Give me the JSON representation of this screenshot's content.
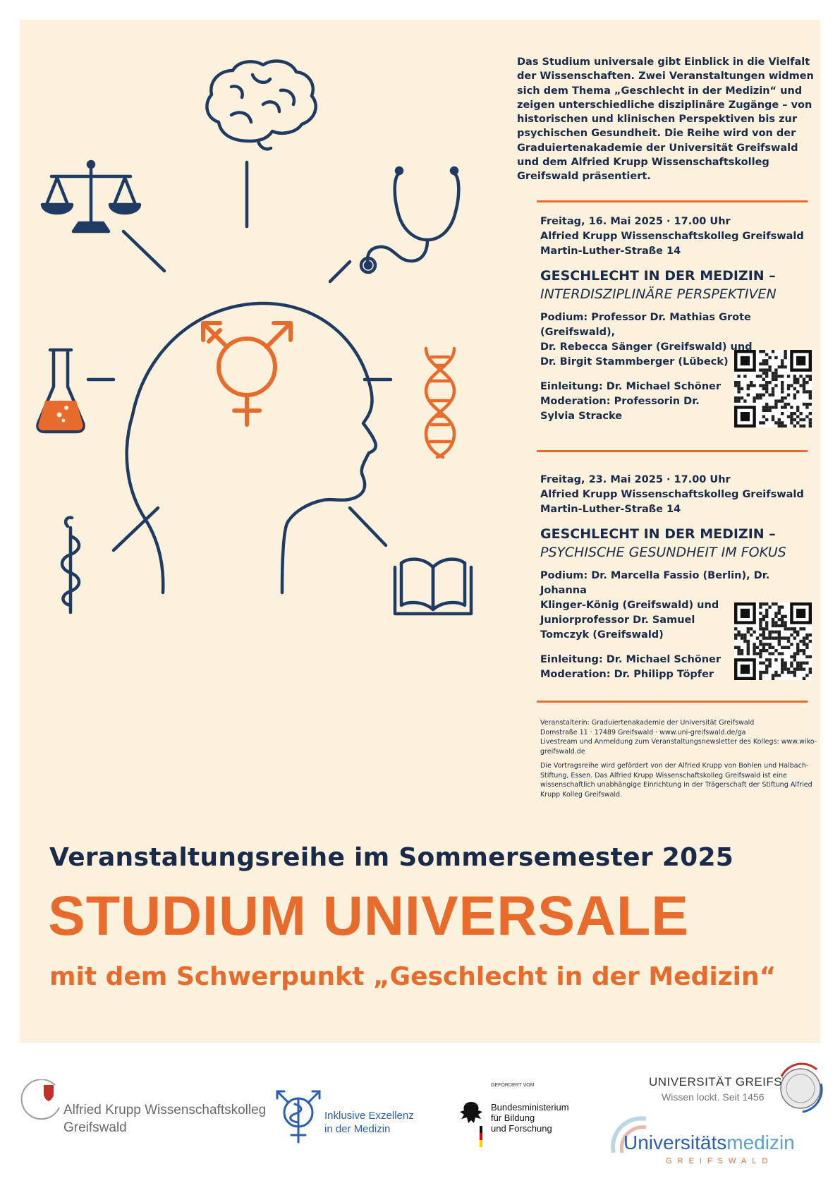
{
  "intro": {
    "lines": [
      "Das Studium universale gibt Einblick in die Vielfalt",
      "der Wissenschaften. Zwei Veranstaltungen widmen",
      "sich dem Thema „Geschlecht in der Medizin“ und",
      "zeigen unterschiedliche disziplinäre Zugänge – von",
      "historischen und klinischen Perspektiven bis zur",
      "psychischen Gesundheit. Die Reihe wird von der",
      "Graduiertenakademie der Universität Greifswald",
      "und dem Alfried Krupp Wissenschaftskolleg",
      "Greifswald präsentiert."
    ]
  },
  "events": [
    {
      "date": "Freitag, 16. Mai 2025 · 17.00 Uhr",
      "venue": "Alfried Krupp Wissenschaftskolleg Greifswald",
      "address": "Martin-Luther-Straße 14",
      "title": "GESCHLECHT IN DER MEDIZIN –",
      "subtitle": "INTERDISZIPLINÄRE PERSPEKTIVEN",
      "podium": [
        "Podium: Professor Dr. Mathias Grote (Greifswald),",
        "Dr. Rebecca Sänger (Greifswald) und",
        "Dr. Birgit Stammberger (Lübeck)"
      ],
      "credits": [
        "Einleitung: Dr. Michael Schöner",
        "Moderation: Professorin Dr.",
        "Sylvia Stracke"
      ]
    },
    {
      "date": "Freitag, 23. Mai 2025 · 17.00 Uhr",
      "venue": "Alfried Krupp Wissenschaftskolleg Greifswald",
      "address": "Martin-Luther-Straße 14",
      "title": "GESCHLECHT IN DER MEDIZIN –",
      "subtitle": "PSYCHISCHE GESUNDHEIT IM FOKUS",
      "podium": [
        "Podium: Dr. Marcella Fassio (Berlin), Dr. Johanna",
        "Klinger-König (Greifswald) und",
        "Juniorprofessor Dr. Samuel",
        "Tomczyk (Greifswald)"
      ],
      "credits": [
        "Einleitung: Dr. Michael Schöner",
        "Moderation: Dr. Philipp Töpfer"
      ]
    }
  ],
  "fineprint": {
    "organizer": [
      "Veranstalterin: Graduiertenakademie der Universität Greifswald",
      "Domstraße 11 · 17489 Greifswald · www.uni-greifswald.de/ga",
      "Livestream und Anmeldung zum Veranstaltungsnewsletter des Kollegs: www.wiko-",
      "greifswald.de"
    ],
    "funding": [
      "Die Vortragsreihe wird gefördert von der Alfried Krupp von Bohlen und Halbach-",
      "Stiftung, Essen. Das Alfried Krupp Wissenschaftskolleg Greifswald ist eine",
      "wissenschaftlich unabhängige Einrichtung in der Trägerschaft der Stiftung Alfried",
      "Krupp Kolleg Greifswald."
    ]
  },
  "headline": {
    "series": "Veranstaltungsreihe im Sommersemester 2025",
    "title": "STUDIUM UNIVERSALE",
    "subtitle": "mit dem Schwerpunkt „Geschlecht in der Medizin“"
  },
  "logos": {
    "krupp": {
      "line1": "Alfried Krupp Wissenschaftskolleg",
      "line2": "Greifswald"
    },
    "inklusive": {
      "line1": "Inklusive Exzellenz",
      "line2": "in der Medizin"
    },
    "bmbf": {
      "small": "GEFÖRDERT VOM",
      "line1": "Bundesministerium",
      "line2": "für Bildung",
      "line3": "und Forschung"
    },
    "uni": {
      "name": "UNIVERSITÄT GREIFSWALD",
      "tagline": "Wissen lockt. Seit 1456"
    },
    "unimed": {
      "name_a": "Universitäts",
      "name_b": "medizin",
      "city": "GREIFSWALD"
    }
  },
  "colors": {
    "navy": "#1f3a63",
    "orange": "#e96b2c",
    "background": "#fbf1dc",
    "text": "#1a2a4a"
  },
  "icons": [
    "brain-icon",
    "scales-icon",
    "stethoscope-icon",
    "flask-icon",
    "dna-icon",
    "rod-of-asclepius-icon",
    "book-icon",
    "transgender-symbol-icon",
    "head-profile-icon"
  ]
}
